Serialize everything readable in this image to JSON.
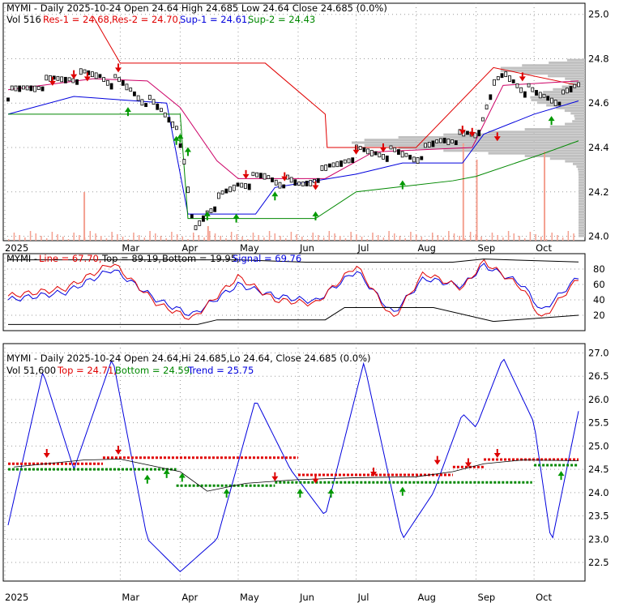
{
  "colors": {
    "res1": "#e00000",
    "res2": "#e00000",
    "sup1": "#0000dd",
    "sup2": "#008800",
    "line": "#e00000",
    "top": "#e00000",
    "bottom": "#008800",
    "signal": "#0000dd",
    "trend": "#0000dd",
    "volume_bar": "#f4a090",
    "profile": "#c0c0c0",
    "res2_line": "#cc0066",
    "arrow_up": "#009900",
    "arrow_down": "#dd0000"
  },
  "panel1": {
    "title": "MYMI - Daily 2025-10-24 Open 24.64   High 24.685   Low 24.64   Close 24.685 (0.0%)",
    "legend": [
      {
        "text": "Vol 516",
        "color": "#000000"
      },
      {
        "text": "Res-1 = 24.68,",
        "color": "#e00000"
      },
      {
        "text": "Res-2 = 24.70,",
        "color": "#e00000"
      },
      {
        "text": "Sup-1 = 24.61,",
        "color": "#0000dd"
      },
      {
        "text": "Sup-2 = 24.43",
        "color": "#008800"
      }
    ],
    "y_ticks": [
      "25.0",
      "24.8",
      "24.6",
      "24.4",
      "24.2",
      "24.0"
    ]
  },
  "panel2": {
    "legend": [
      {
        "text": "MYMI - ",
        "color": "#000000"
      },
      {
        "text": "Line = 67.70,",
        "color": "#e00000"
      },
      {
        "text": "Top = 89.19,",
        "color": "#000000"
      },
      {
        "text": "Bottom = 19.95,",
        "color": "#000000"
      },
      {
        "text": "Signal = 69.76",
        "color": "#0000dd"
      }
    ],
    "y_ticks": [
      "80",
      "60",
      "40",
      "20"
    ]
  },
  "panel3": {
    "title": "MYMI - Daily 2025-10-24 Open 24.64,Hi 24.685,Lo 24.64, Close 24.685 (0.0%)",
    "legend": [
      {
        "text": "Vol 51,600",
        "color": "#000000"
      },
      {
        "text": "Top = 24.71,",
        "color": "#e00000"
      },
      {
        "text": "Bottom = 24.59,",
        "color": "#008800"
      },
      {
        "text": "Trend = 25.75",
        "color": "#0000dd"
      }
    ],
    "y_ticks": [
      "27.0",
      "26.5",
      "26.0",
      "25.5",
      "25.0",
      "24.5",
      "24.0",
      "23.5",
      "23.0",
      "22.5"
    ]
  },
  "x_labels": [
    "2025",
    "Mar",
    "Apr",
    "May",
    "Jun",
    "Jul",
    "Aug",
    "Sep",
    "Oct"
  ],
  "chart_data": [
    {
      "type": "line",
      "title": "MYMI - Daily 2025-10-24 Open 24.64   High 24.685   Low 24.64   Close 24.685 (0.0%)",
      "x_range": [
        "2025-01-02",
        "2025-10-24"
      ],
      "ylim": [
        23.98,
        25.05
      ],
      "close_approx": {
        "x": [
          "2025-01-02",
          "2025-01-15",
          "2025-02-03",
          "2025-02-18",
          "2025-03-03",
          "2025-03-17",
          "2025-03-31",
          "2025-04-08",
          "2025-04-15",
          "2025-05-01",
          "2025-05-15",
          "2025-06-02",
          "2025-06-16",
          "2025-07-01",
          "2025-07-16",
          "2025-08-01",
          "2025-08-15",
          "2025-09-02",
          "2025-09-08",
          "2025-09-16",
          "2025-10-01",
          "2025-10-15",
          "2025-10-24"
        ],
        "y": [
          24.64,
          24.68,
          24.72,
          24.73,
          24.68,
          24.6,
          24.5,
          24.02,
          24.12,
          24.24,
          24.27,
          24.23,
          24.3,
          24.38,
          24.38,
          24.36,
          24.44,
          24.46,
          24.65,
          24.73,
          24.64,
          24.62,
          24.685
        ]
      },
      "series": [
        {
          "name": "Res-1",
          "last": 24.68
        },
        {
          "name": "Res-2",
          "last": 24.7
        },
        {
          "name": "Sup-1",
          "last": 24.61
        },
        {
          "name": "Sup-2",
          "last": 24.43
        }
      ]
    },
    {
      "type": "line",
      "ylim": [
        0,
        100
      ],
      "series": [
        {
          "name": "Line",
          "last": 67.7,
          "x": [
            "2025-01-02",
            "2025-02-01",
            "2025-02-25",
            "2025-03-20",
            "2025-04-07",
            "2025-05-01",
            "2025-05-20",
            "2025-06-10",
            "2025-07-01",
            "2025-07-20",
            "2025-08-05",
            "2025-08-25",
            "2025-09-05",
            "2025-09-25",
            "2025-10-05",
            "2025-10-24"
          ],
          "y": [
            45,
            55,
            88,
            35,
            15,
            70,
            40,
            35,
            85,
            15,
            75,
            55,
            90,
            55,
            15,
            67.7
          ]
        },
        {
          "name": "Top",
          "last": 89.19
        },
        {
          "name": "Bottom",
          "last": 19.95
        },
        {
          "name": "Signal",
          "last": 69.76,
          "x": [
            "2025-01-02",
            "2025-02-01",
            "2025-02-25",
            "2025-03-20",
            "2025-04-07",
            "2025-05-01",
            "2025-05-20",
            "2025-06-10",
            "2025-07-01",
            "2025-07-20",
            "2025-08-05",
            "2025-08-25",
            "2025-09-05",
            "2025-09-25",
            "2025-10-05",
            "2025-10-24"
          ],
          "y": [
            40,
            50,
            80,
            40,
            20,
            60,
            45,
            38,
            78,
            22,
            68,
            58,
            85,
            60,
            25,
            69.76
          ]
        }
      ]
    },
    {
      "type": "line",
      "title": "MYMI - Daily 2025-10-24 Open 24.64,Hi 24.685,Lo 24.64, Close 24.685 (0.0%)",
      "ylim": [
        22.1,
        27.2
      ],
      "series": [
        {
          "name": "Top",
          "last": 24.71
        },
        {
          "name": "Bottom",
          "last": 24.59
        },
        {
          "name": "Trend",
          "last": 25.75,
          "x": [
            "2025-01-02",
            "2025-01-20",
            "2025-02-05",
            "2025-02-25",
            "2025-03-15",
            "2025-04-01",
            "2025-04-20",
            "2025-05-10",
            "2025-05-28",
            "2025-06-15",
            "2025-07-05",
            "2025-07-25",
            "2025-08-10",
            "2025-08-25",
            "2025-09-01",
            "2025-09-15",
            "2025-10-01",
            "2025-10-10",
            "2025-10-24"
          ],
          "y": [
            23.3,
            26.6,
            24.5,
            26.9,
            23.0,
            22.3,
            23.0,
            26.0,
            24.5,
            23.5,
            26.8,
            23.0,
            24.0,
            25.7,
            25.4,
            26.9,
            25.5,
            22.9,
            25.75
          ]
        }
      ]
    }
  ]
}
